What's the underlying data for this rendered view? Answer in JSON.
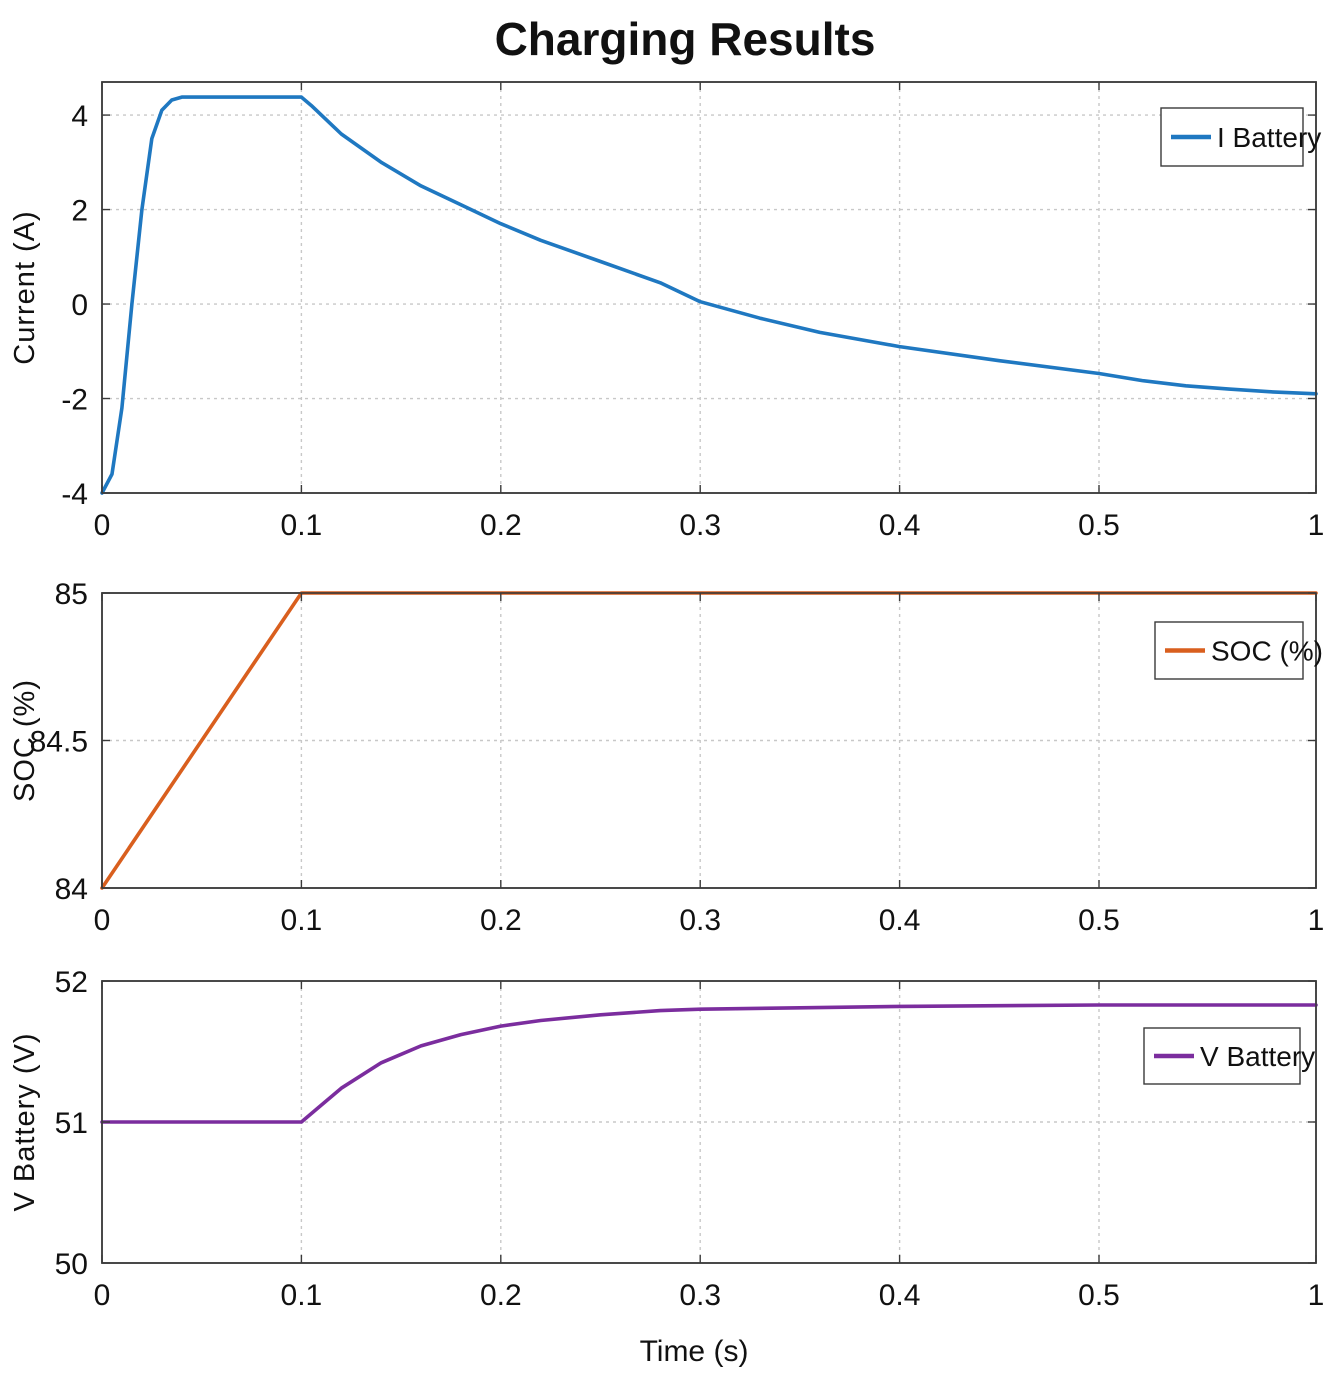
{
  "chart_data": [
    {
      "type": "line",
      "title": "Charging Results",
      "xlabel": "",
      "ylabel": "Current (A)",
      "xlim": [
        0,
        1
      ],
      "ylim": [
        -4,
        4.7
      ],
      "x_ticks": [
        0,
        0.1,
        0.2,
        0.3,
        0.4,
        0.5,
        1
      ],
      "x_tick_labels": [
        "0",
        "0.1",
        "0.2",
        "0.3",
        "0.4",
        "0.5",
        "1"
      ],
      "y_ticks": [
        -4,
        -2,
        0,
        2,
        4
      ],
      "y_tick_labels": [
        "-4",
        "-2",
        "0",
        "2",
        "4"
      ],
      "grid": true,
      "legend_position": "top-right",
      "series": [
        {
          "name": "I Battery",
          "color": "#1f78c1",
          "x": [
            0,
            0.005,
            0.01,
            0.015,
            0.02,
            0.025,
            0.03,
            0.035,
            0.04,
            0.05,
            0.06,
            0.08,
            0.1,
            0.105,
            0.12,
            0.14,
            0.16,
            0.18,
            0.2,
            0.22,
            0.25,
            0.28,
            0.3,
            0.33,
            0.36,
            0.4,
            0.45,
            0.5,
            0.6,
            0.7,
            0.8,
            0.9,
            1
          ],
          "y": [
            -4,
            -3.6,
            -2.2,
            0.0,
            2.0,
            3.5,
            4.1,
            4.32,
            4.38,
            4.38,
            4.38,
            4.38,
            4.38,
            4.2,
            3.6,
            3.0,
            2.5,
            2.1,
            1.7,
            1.35,
            0.9,
            0.45,
            0.05,
            -0.3,
            -0.6,
            -0.9,
            -1.2,
            -1.47,
            -1.62,
            -1.73,
            -1.8,
            -1.86,
            -1.9
          ]
        }
      ]
    },
    {
      "type": "line",
      "xlabel": "",
      "ylabel": "SOC (%)",
      "xlim": [
        0,
        1
      ],
      "ylim": [
        84,
        85
      ],
      "x_ticks": [
        0,
        0.1,
        0.2,
        0.3,
        0.4,
        0.5,
        1
      ],
      "x_tick_labels": [
        "0",
        "0.1",
        "0.2",
        "0.3",
        "0.4",
        "0.5",
        "1"
      ],
      "y_ticks": [
        84,
        84.5,
        85
      ],
      "y_tick_labels": [
        "84",
        "84.5",
        "85"
      ],
      "grid": true,
      "legend_position": "top-right",
      "series": [
        {
          "name": "SOC (%)",
          "color": "#d95f1e",
          "x": [
            0,
            0.1,
            0.2,
            0.3,
            0.4,
            0.5,
            0.6,
            0.7,
            0.8,
            0.9,
            1
          ],
          "y": [
            84,
            85,
            85,
            85,
            85,
            85,
            85,
            85,
            85,
            85,
            85
          ]
        }
      ]
    },
    {
      "type": "line",
      "xlabel": "Time (s)",
      "ylabel": "V Battery (V)",
      "xlim": [
        0,
        1
      ],
      "ylim": [
        50,
        52
      ],
      "x_ticks": [
        0,
        0.1,
        0.2,
        0.3,
        0.4,
        0.5,
        1
      ],
      "x_tick_labels": [
        "0",
        "0.1",
        "0.2",
        "0.3",
        "0.4",
        "0.5",
        "1"
      ],
      "y_ticks": [
        50,
        51,
        52
      ],
      "y_tick_labels": [
        "50",
        "51",
        "52"
      ],
      "grid": true,
      "legend_position": "top-right",
      "series": [
        {
          "name": "V Battery",
          "color": "#7b2d9e",
          "x": [
            0,
            0.05,
            0.1,
            0.11,
            0.12,
            0.14,
            0.16,
            0.18,
            0.2,
            0.22,
            0.25,
            0.28,
            0.3,
            0.35,
            0.4,
            0.5,
            0.6,
            0.8,
            1
          ],
          "y": [
            51,
            51,
            51,
            51.12,
            51.24,
            51.42,
            51.54,
            51.62,
            51.68,
            51.72,
            51.76,
            51.79,
            51.8,
            51.81,
            51.82,
            51.83,
            51.83,
            51.83,
            51.83
          ]
        }
      ]
    }
  ]
}
